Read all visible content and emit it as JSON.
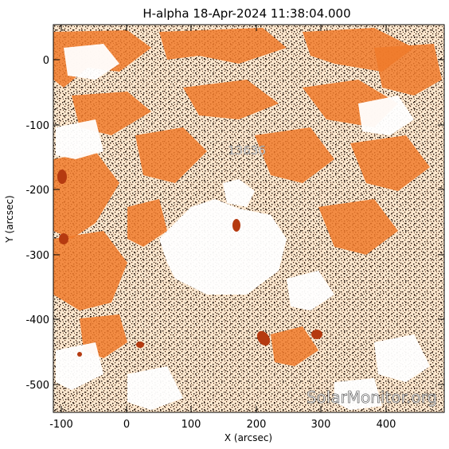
{
  "title": "H-alpha 18-Apr-2024 11:38:04.000",
  "x_label": "X (arcsec)",
  "y_label": "Y (arcsec)",
  "x_ticks": [
    "-100",
    "0",
    "100",
    "200",
    "300",
    "400"
  ],
  "y_ticks": [
    "0",
    "-100",
    "-200",
    "-300",
    "-400",
    "-500"
  ],
  "active_region_label": "13636",
  "watermark": "SolarMonitor.org",
  "colors": {
    "background": "#fff3e2",
    "plage": "#f07a2a",
    "dark_speckle": "#1b0d05",
    "bright": "#ffffff"
  }
}
